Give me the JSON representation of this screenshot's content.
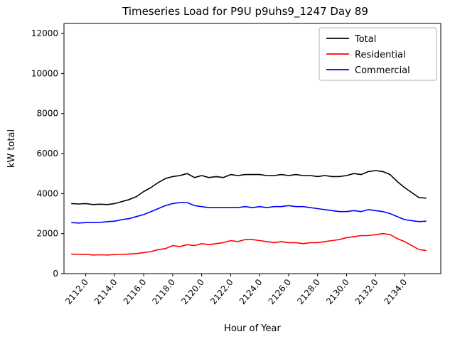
{
  "title": "Timeseries Load for P9U p9uhs9_1247  Day 89",
  "chart_data": {
    "type": "line",
    "title": "Timeseries Load for P9U p9uhs9_1247  Day 89",
    "xlabel": "Hour of Year",
    "ylabel": "kW total",
    "xlim": [
      2110.5,
      2136.5
    ],
    "ylim": [
      0,
      12500
    ],
    "grid": false,
    "legend_position": "upper right",
    "xtick_labels": [
      "2112.0",
      "2114.0",
      "2116.0",
      "2118.0",
      "2120.0",
      "2122.0",
      "2124.0",
      "2126.0",
      "2128.0",
      "2130.0",
      "2132.0",
      "2134.0"
    ],
    "xticks": [
      2112,
      2114,
      2116,
      2118,
      2120,
      2122,
      2124,
      2126,
      2128,
      2130,
      2132,
      2134
    ],
    "yticks": [
      0,
      2000,
      4000,
      6000,
      8000,
      10000,
      12000
    ],
    "x": [
      2111.0,
      2111.5,
      2112.0,
      2112.5,
      2113.0,
      2113.5,
      2114.0,
      2114.5,
      2115.0,
      2115.5,
      2116.0,
      2116.5,
      2117.0,
      2117.5,
      2118.0,
      2118.5,
      2119.0,
      2119.5,
      2120.0,
      2120.5,
      2121.0,
      2121.5,
      2122.0,
      2122.5,
      2123.0,
      2123.5,
      2124.0,
      2124.5,
      2125.0,
      2125.5,
      2126.0,
      2126.5,
      2127.0,
      2127.5,
      2128.0,
      2128.5,
      2129.0,
      2129.5,
      2130.0,
      2130.5,
      2131.0,
      2131.5,
      2132.0,
      2132.5,
      2133.0,
      2133.5,
      2134.0,
      2134.5,
      2135.0,
      2135.5
    ],
    "series": [
      {
        "name": "Total",
        "color": "#000000",
        "values": [
          3500,
          3480,
          3500,
          3450,
          3470,
          3450,
          3500,
          3600,
          3700,
          3850,
          4100,
          4300,
          4550,
          4750,
          4850,
          4900,
          5000,
          4800,
          4900,
          4800,
          4850,
          4800,
          4950,
          4900,
          4950,
          4950,
          4950,
          4900,
          4900,
          4950,
          4900,
          4950,
          4900,
          4900,
          4850,
          4900,
          4850,
          4850,
          4900,
          5000,
          4950,
          5100,
          5150,
          5100,
          4950,
          4600,
          4300,
          4050,
          3800,
          3770
        ]
      },
      {
        "name": "Residential",
        "color": "#ff0000",
        "values": [
          980,
          960,
          970,
          930,
          940,
          930,
          950,
          960,
          980,
          1000,
          1050,
          1100,
          1200,
          1250,
          1400,
          1350,
          1450,
          1400,
          1500,
          1450,
          1500,
          1550,
          1650,
          1600,
          1700,
          1700,
          1650,
          1600,
          1550,
          1600,
          1550,
          1550,
          1500,
          1550,
          1550,
          1600,
          1650,
          1700,
          1800,
          1850,
          1900,
          1900,
          1950,
          2000,
          1950,
          1750,
          1600,
          1400,
          1200,
          1150
        ]
      },
      {
        "name": "Commercial",
        "color": "#0000ff",
        "values": [
          2550,
          2530,
          2550,
          2550,
          2560,
          2600,
          2620,
          2700,
          2750,
          2850,
          2950,
          3100,
          3250,
          3400,
          3500,
          3550,
          3550,
          3400,
          3350,
          3300,
          3300,
          3300,
          3300,
          3300,
          3350,
          3300,
          3350,
          3300,
          3350,
          3350,
          3400,
          3350,
          3350,
          3300,
          3250,
          3200,
          3150,
          3100,
          3100,
          3150,
          3100,
          3200,
          3150,
          3100,
          3000,
          2850,
          2700,
          2650,
          2600,
          2620
        ]
      }
    ]
  }
}
